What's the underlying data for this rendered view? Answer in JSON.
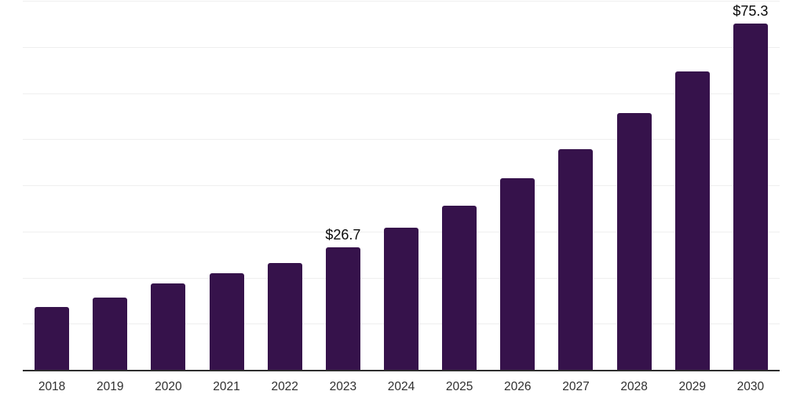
{
  "chart_data": {
    "type": "bar",
    "title": "",
    "xlabel": "",
    "ylabel": "",
    "categories": [
      "2018",
      "2019",
      "2020",
      "2021",
      "2022",
      "2023",
      "2024",
      "2025",
      "2026",
      "2027",
      "2028",
      "2029",
      "2030"
    ],
    "values": [
      13.8,
      15.8,
      18.9,
      21.1,
      23.4,
      26.7,
      31.0,
      35.8,
      41.7,
      48.0,
      55.8,
      64.9,
      75.3
    ],
    "value_labels": [
      "",
      "",
      "",
      "",
      "",
      "$26.7",
      "",
      "",
      "",
      "",
      "",
      "",
      "$75.3"
    ],
    "ylim": [
      0,
      80
    ],
    "gridline_step": 10,
    "grid": "horizontal-only",
    "legend_position": "none",
    "y_axis_labels_visible": false,
    "colors": {
      "bar": "#36124B",
      "axis_line": "#2E2E2E",
      "gridline": "#EFEFEF",
      "tick_label": "#2F2F2F",
      "value_label": "#0A0A0A",
      "background": "#FFFFFF"
    }
  }
}
